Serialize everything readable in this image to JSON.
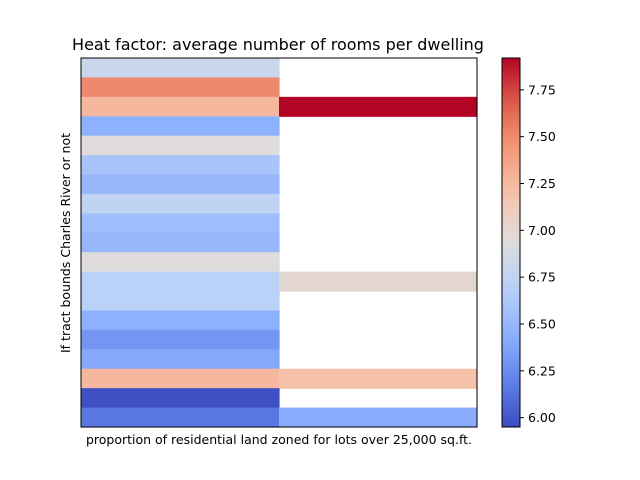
{
  "chart_data": {
    "type": "heatmap",
    "title": "Heat factor: average number of rooms per dwelling",
    "xlabel": "proportion of residential land zoned for lots over 25,000 sq.ft.",
    "ylabel": "If tract bounds Charles River or not",
    "columns": 2,
    "rows": 19,
    "values": [
      [
        6.8,
        null
      ],
      [
        7.5,
        null
      ],
      [
        7.25,
        7.92
      ],
      [
        6.45,
        null
      ],
      [
        6.95,
        null
      ],
      [
        6.6,
        null
      ],
      [
        6.5,
        null
      ],
      [
        6.75,
        null
      ],
      [
        6.55,
        null
      ],
      [
        6.5,
        null
      ],
      [
        6.95,
        null
      ],
      [
        6.7,
        7.0
      ],
      [
        6.7,
        null
      ],
      [
        6.45,
        null
      ],
      [
        6.3,
        null
      ],
      [
        6.4,
        null
      ],
      [
        7.25,
        7.2
      ],
      [
        5.97,
        null
      ],
      [
        6.15,
        6.42
      ]
    ],
    "colorbar": {
      "colormap": "coolwarm",
      "vmin": 5.95,
      "vmax": 7.92,
      "ticks": [
        "6.00",
        "6.25",
        "6.50",
        "6.75",
        "7.00",
        "7.25",
        "7.50",
        "7.75"
      ]
    }
  }
}
